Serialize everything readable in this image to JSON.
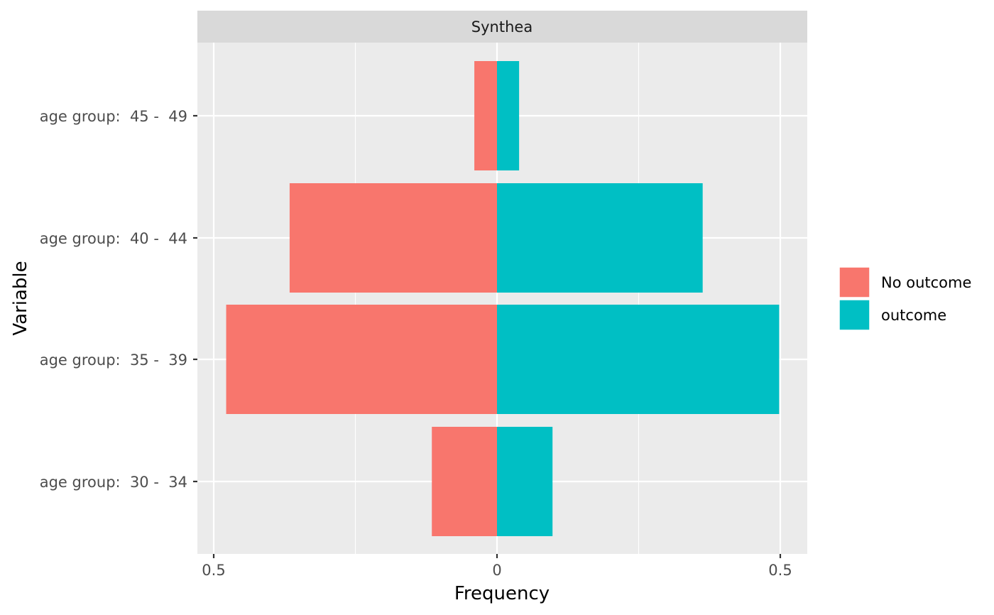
{
  "chart_data": {
    "type": "bar",
    "orientation": "horizontal",
    "layout": "population-pyramid",
    "facet_label": "Synthea",
    "xlabel": "Frequency",
    "ylabel": "Variable",
    "categories": [
      "age group:  30 -  34",
      "age group:  35 -  39",
      "age group:  40 -  44",
      "age group:  45 -  49"
    ],
    "series": [
      {
        "name": "No outcome",
        "side": "left",
        "color": "#F8766D",
        "values": [
          0.115,
          0.478,
          0.366,
          0.04
        ]
      },
      {
        "name": "outcome",
        "side": "right",
        "color": "#00BFC4",
        "values": [
          0.098,
          0.498,
          0.363,
          0.039
        ]
      }
    ],
    "xlim": [
      -0.5,
      0.5
    ],
    "xticks": [
      {
        "value": -0.5,
        "label": "0.5"
      },
      {
        "value": 0,
        "label": "0"
      },
      {
        "value": 0.5,
        "label": "0.5"
      }
    ],
    "grid": true,
    "legend_position": "right",
    "panel_background": "#EBEBEB",
    "strip_background": "#D9D9D9"
  }
}
